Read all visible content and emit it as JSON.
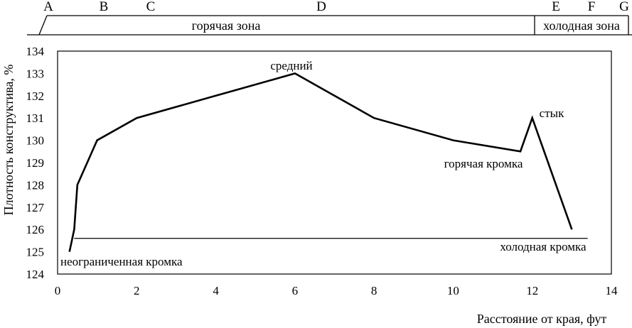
{
  "chart_data": {
    "type": "line",
    "xlabel": "Расстояние от края, фут",
    "ylabel": "Плотность конструктива, %",
    "xlim": [
      0,
      14
    ],
    "ylim": [
      124,
      134
    ],
    "xticks": [
      "0",
      "2",
      "4",
      "6",
      "8",
      "10",
      "12",
      "14"
    ],
    "yticks": [
      "124",
      "125",
      "126",
      "127",
      "128",
      "129",
      "130",
      "131",
      "132",
      "133",
      "134"
    ],
    "grid": false,
    "series": [
      {
        "x": [
          0.3,
          0.42,
          0.5,
          1,
          2,
          4,
          6,
          8,
          10,
          11.7,
          12,
          13
        ],
        "y": [
          125,
          126,
          128,
          130,
          131,
          132,
          133,
          131,
          130,
          129.5,
          131,
          126
        ]
      }
    ],
    "reference_line": {
      "x": [
        0.42,
        13.4
      ],
      "y": [
        125.6,
        125.6
      ]
    },
    "annotations": [
      {
        "key": "middle",
        "text": "средний"
      },
      {
        "key": "joint",
        "text": "стык"
      },
      {
        "key": "hot_edge",
        "text": "горячая кромка"
      },
      {
        "key": "unconfined_edge",
        "text": "неограниченная кромка"
      },
      {
        "key": "cold_edge",
        "text": "холодная кромка"
      }
    ],
    "zones": {
      "letters": [
        "A",
        "B",
        "C",
        "D",
        "E",
        "F",
        "G"
      ],
      "hot_zone": "горячая зона",
      "cold_zone": "холодная зона"
    }
  }
}
